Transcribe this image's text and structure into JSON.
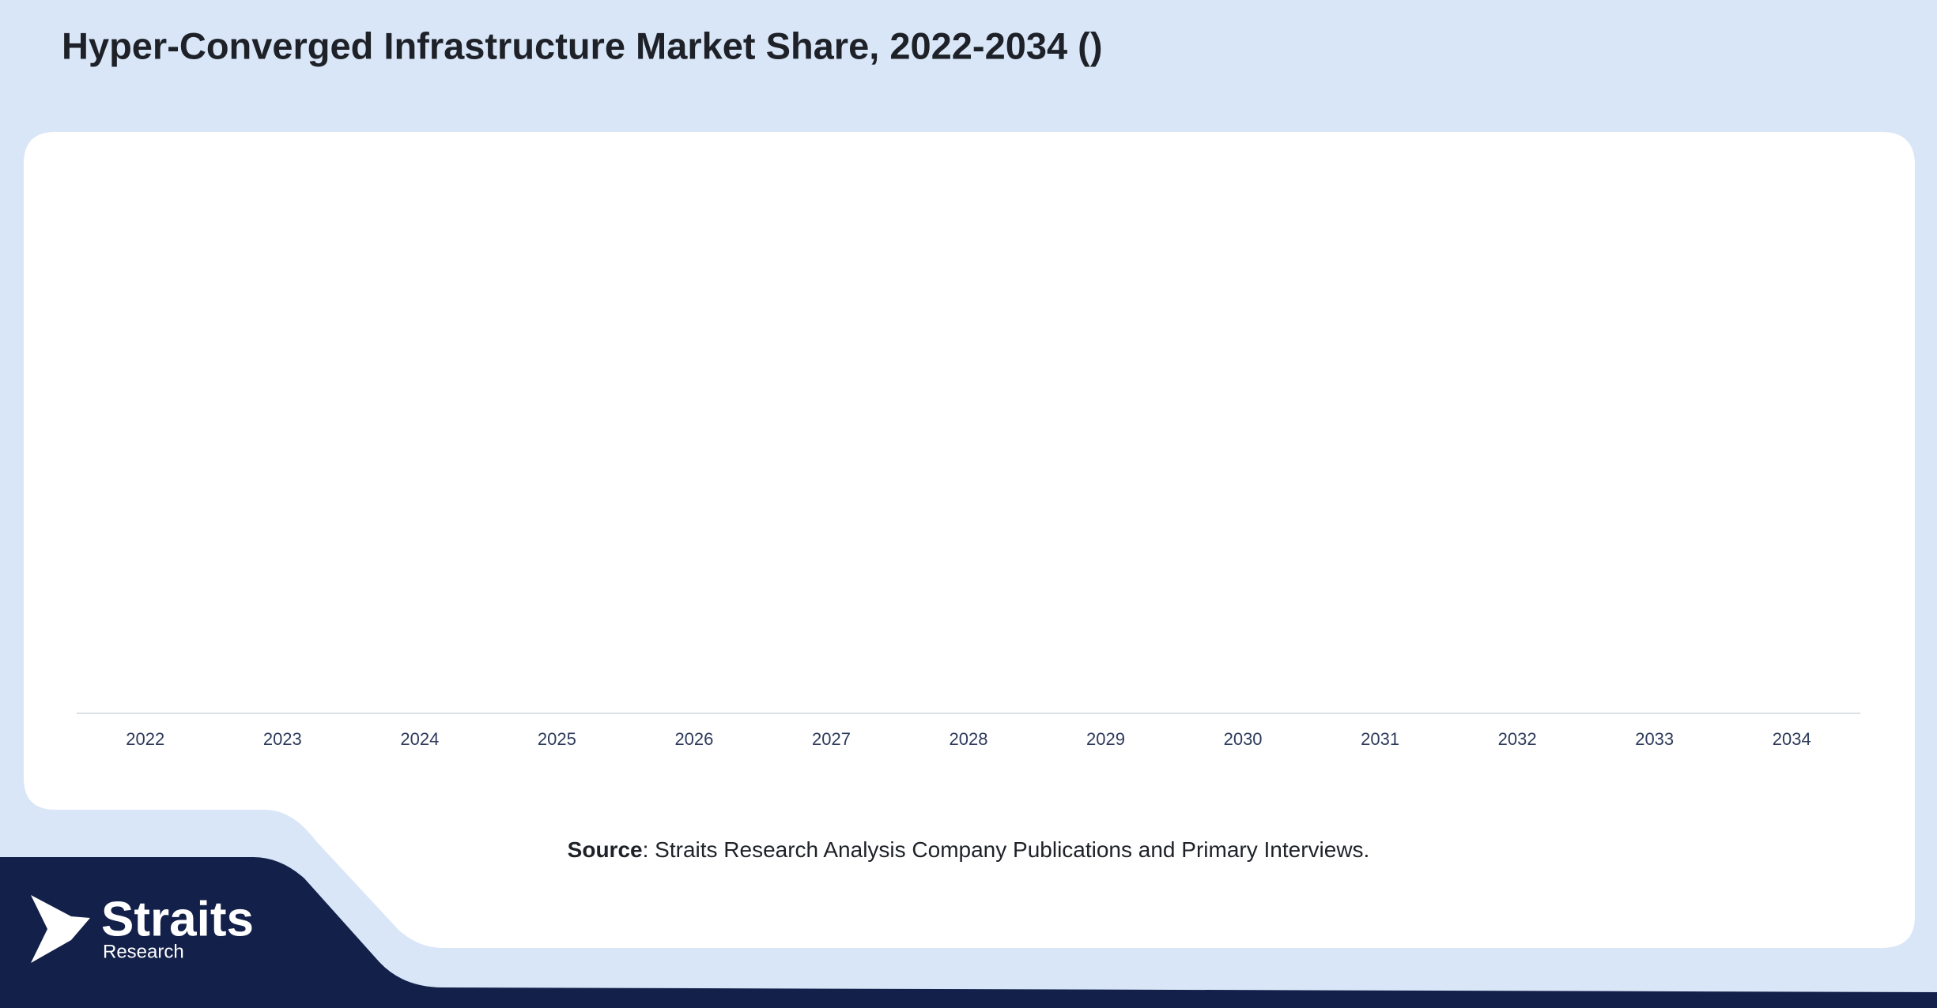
{
  "chart_data": {
    "type": "bar",
    "title": "Hyper-Converged Infrastructure Market Share, 2022-2034 ()",
    "categories": [
      "2022",
      "2023",
      "2024",
      "2025",
      "2026",
      "2027",
      "2028",
      "2029",
      "2030",
      "2031",
      "2032",
      "2033",
      "2034"
    ]
  },
  "source": {
    "label": "Source",
    "text": ": Straits Research Analysis Company Publications and Primary Interviews."
  },
  "logo": {
    "name": "Straits",
    "tagline": "Research"
  }
}
